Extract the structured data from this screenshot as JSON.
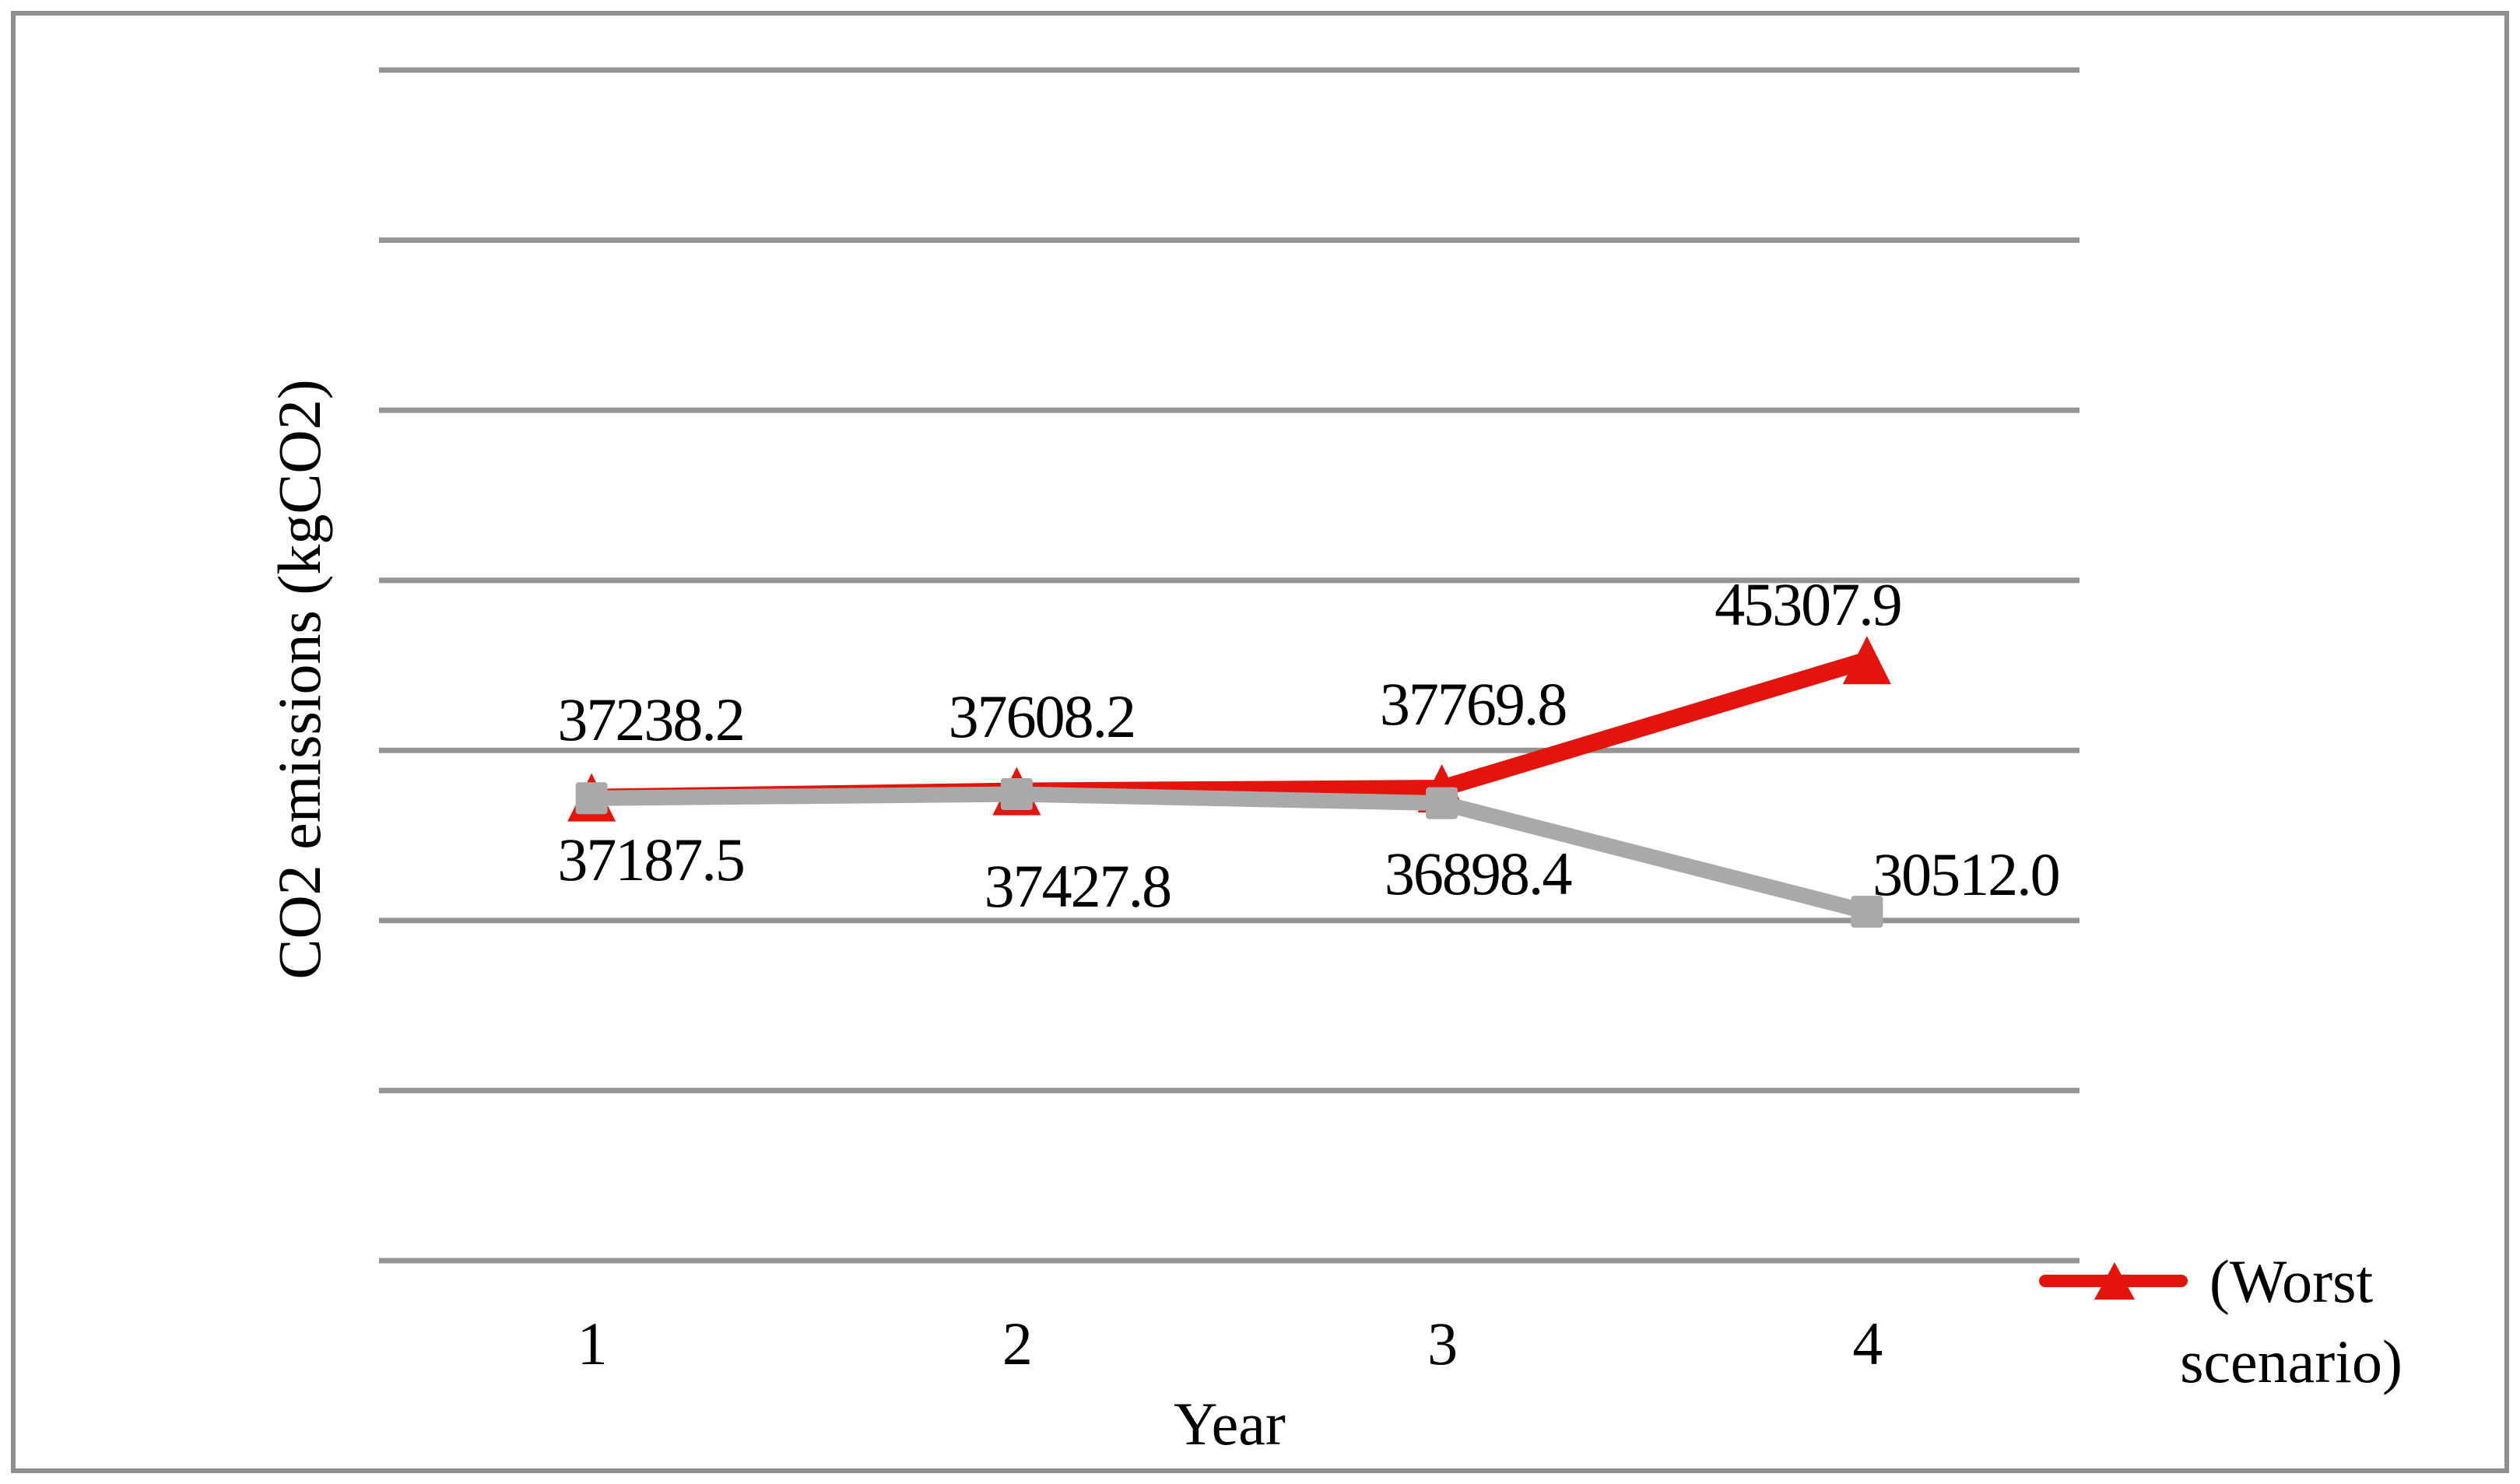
{
  "chart_data": {
    "type": "line",
    "title": "",
    "xlabel": "Year",
    "ylabel": "CO2 emissions (kgCO2)",
    "categories": [
      "1",
      "2",
      "3",
      "4"
    ],
    "series": [
      {
        "name": "(Worst scenario)",
        "marker": "triangle",
        "color": "#e3140c",
        "values": [
          37238.2,
          37608.2,
          37769.8,
          45307.9
        ],
        "data_labels": [
          "37238.2",
          "37608.2",
          "37769.8",
          "45307.9"
        ],
        "label_position": "above"
      },
      {
        "name": "",
        "marker": "square",
        "color": "#a9a9a9",
        "values": [
          37187.5,
          37427.8,
          36898.4,
          30512.0
        ],
        "data_labels": [
          "37187.5",
          "37427.8",
          "36898.4",
          "30512.0"
        ],
        "label_position": "below"
      }
    ],
    "ylim": [
      10000,
      80000
    ],
    "gridline_step": 10000,
    "y_tick_labels_visible": false,
    "grid": "horizontal",
    "legend_position": "bottom-right",
    "legend_entries": [
      "(Worst scenario)"
    ]
  },
  "legend": {
    "lines": [
      "(Worst",
      "scenario)"
    ]
  },
  "colors": {
    "series_red": "#e3140c",
    "series_gray": "#a9a9a9",
    "gridline": "#949494",
    "border": "#8f8f8f",
    "text": "#000000"
  }
}
